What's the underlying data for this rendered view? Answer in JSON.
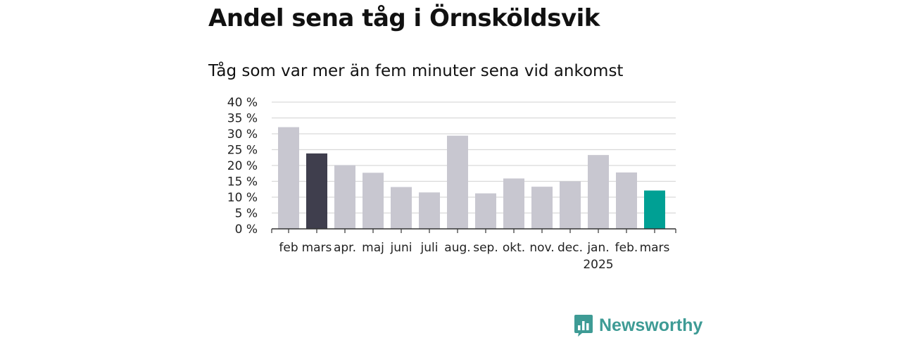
{
  "title": "Andel sena tåg i Örnsköldsvik",
  "subtitle": "Tåg som var mer än fem minuter sena vid ankomst",
  "brand": {
    "name": "Newsworthy",
    "color": "#3e9b95",
    "icon": "bar-chart-speech-bubble-icon"
  },
  "colors": {
    "default_bar": "#c8c7d0",
    "highlight_prev": "#3f3e4d",
    "highlight_current": "#00a094",
    "grid": "#d9d9d9",
    "axis": "#333333"
  },
  "chart_data": {
    "type": "bar",
    "categories": [
      "feb",
      "mars",
      "apr.",
      "maj",
      "juni",
      "juli",
      "aug.",
      "sep.",
      "okt.",
      "nov.",
      "dec.",
      "jan.",
      "feb.",
      "mars"
    ],
    "year_labels": {
      "11": "2025"
    },
    "values": [
      32.1,
      23.8,
      20.1,
      17.7,
      13.2,
      11.5,
      29.4,
      11.2,
      15.9,
      13.3,
      15.0,
      23.3,
      17.8,
      12.1
    ],
    "bar_color_roles": [
      "default",
      "highlight_prev",
      "default",
      "default",
      "default",
      "default",
      "default",
      "default",
      "default",
      "default",
      "default",
      "default",
      "default",
      "highlight_current"
    ],
    "yticks": [
      "0 %",
      "5 %",
      "10 %",
      "15 %",
      "20 %",
      "25 %",
      "30 %",
      "35 %",
      "40 %"
    ],
    "ylim": [
      0,
      40
    ],
    "grid": true,
    "legend": "none"
  }
}
